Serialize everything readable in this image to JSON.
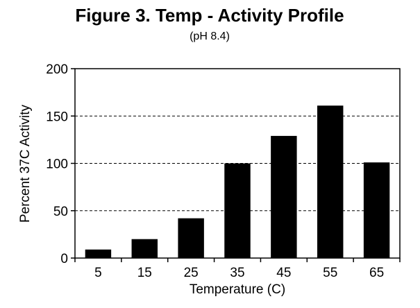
{
  "chart_data": {
    "type": "bar",
    "title": "Figure 3. Temp - Activity Profile",
    "subtitle": "(pH  8.4)",
    "xlabel": "Temperature (C)",
    "ylabel": "Percent 37C Activity",
    "categories": [
      "5",
      "15",
      "25",
      "35",
      "45",
      "55",
      "65"
    ],
    "values": [
      9,
      20,
      42,
      100,
      129,
      161,
      101
    ],
    "ylim": [
      0,
      200
    ],
    "yticks": [
      0,
      50,
      100,
      150,
      200
    ],
    "grid": "horizontal-dashed",
    "legend": "none",
    "bar_color": "#000000"
  }
}
